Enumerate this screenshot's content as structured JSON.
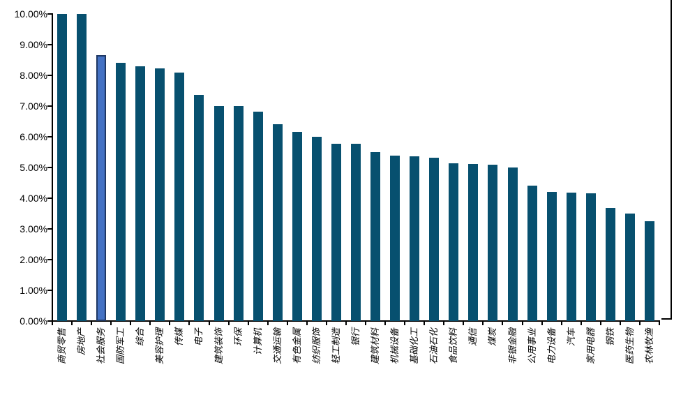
{
  "chart_data": {
    "type": "bar",
    "title": "",
    "xlabel": "",
    "ylabel": "",
    "ylim": [
      0,
      10
    ],
    "ytick_step": 1,
    "ytick_labels": [
      "10.00%",
      "9.00%",
      "8.00%",
      "7.00%",
      "6.00%",
      "5.00%",
      "4.00%",
      "3.00%",
      "2.00%",
      "1.00%",
      "0.00%"
    ],
    "grid": false,
    "legend": false,
    "categories": [
      "商贸零售",
      "房地产",
      "社会服务",
      "国防军工",
      "综合",
      "美容护理",
      "传媒",
      "电子",
      "建筑装饰",
      "环保",
      "计算机",
      "交通运输",
      "有色金属",
      "纺织服饰",
      "轻工制造",
      "银行",
      "建筑材料",
      "机械设备",
      "基础化工",
      "石油石化",
      "食品饮料",
      "通信",
      "煤炭",
      "非银金融",
      "公用事业",
      "电力设备",
      "汽车",
      "家用电器",
      "钢铁",
      "医药生物",
      "农林牧渔"
    ],
    "values": [
      10.0,
      10.0,
      8.65,
      8.4,
      8.3,
      8.23,
      8.1,
      7.36,
      7.0,
      6.99,
      6.82,
      6.4,
      6.16,
      6.01,
      5.78,
      5.77,
      5.5,
      5.38,
      5.37,
      5.31,
      5.14,
      5.12,
      5.1,
      5.0,
      4.41,
      4.2,
      4.19,
      4.17,
      3.68,
      3.49,
      3.26
    ],
    "highlight_index": 2,
    "highlight_category": "社会服务",
    "colors": {
      "bar": "#07506F",
      "highlight_fill": "#4472C4",
      "highlight_border": "#1F3864",
      "axis": "#000000",
      "background": "#FFFFFF"
    }
  }
}
